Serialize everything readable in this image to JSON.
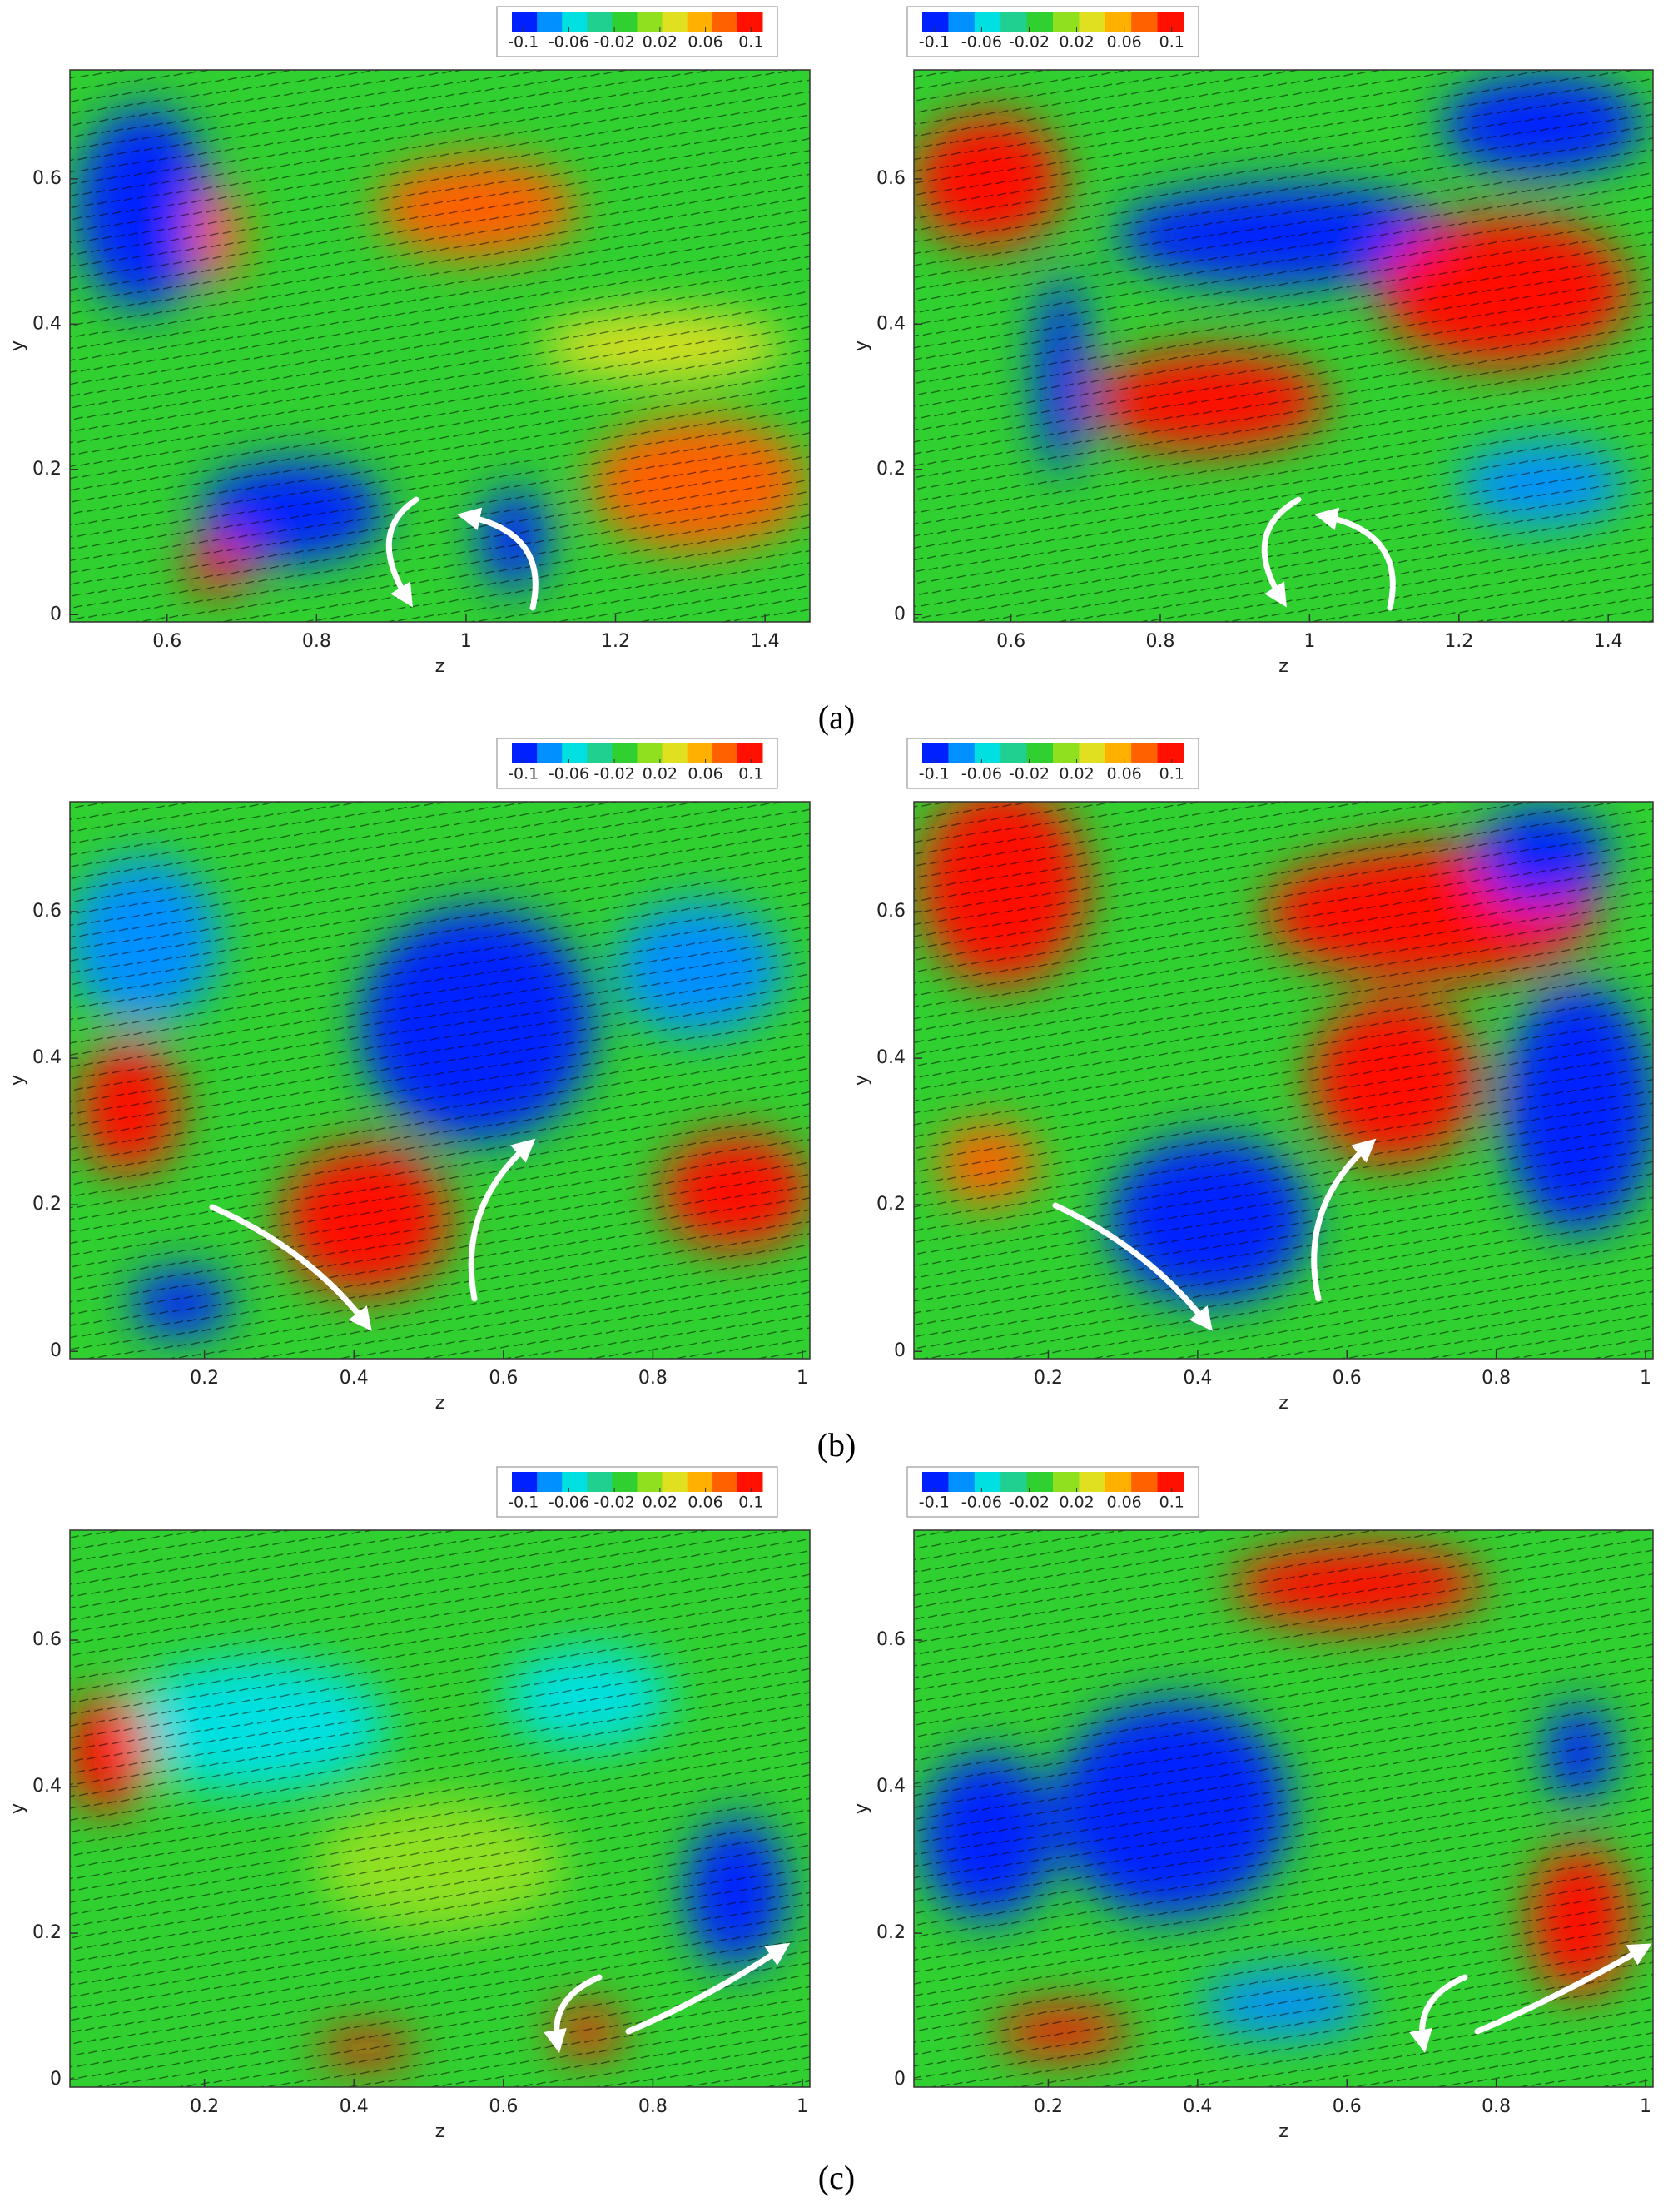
{
  "panel_labels": [
    "(a)",
    "(b)",
    "(c)"
  ],
  "chart_data": [
    {
      "type": "contour",
      "xlabel": "z",
      "ylabel": "y",
      "xlim": [
        0.47,
        1.46
      ],
      "ylim": [
        -0.01,
        0.75
      ],
      "xticks": [
        0.6,
        0.8,
        1,
        1.2,
        1.4
      ],
      "yticks": [
        0,
        0.2,
        0.4,
        0.6
      ],
      "clim": [
        -0.11,
        0.11
      ],
      "colorbar_ticks": [
        -0.1,
        -0.06,
        -0.02,
        0.02,
        0.06,
        0.1
      ],
      "colormap": [
        "#0020ff",
        "#0090ff",
        "#00e0e0",
        "#20d090",
        "#30d030",
        "#90e020",
        "#e0e020",
        "#ffb000",
        "#ff6000",
        "#ff1000"
      ]
    },
    {
      "type": "contour",
      "xlabel": "z",
      "ylabel": "y",
      "xlim": [
        0.47,
        1.46
      ],
      "ylim": [
        -0.01,
        0.75
      ],
      "xticks": [
        0.6,
        0.8,
        1,
        1.2,
        1.4
      ],
      "yticks": [
        0,
        0.2,
        0.4,
        0.6
      ],
      "clim": [
        -0.11,
        0.11
      ],
      "colorbar_ticks": [
        -0.1,
        -0.06,
        -0.02,
        0.02,
        0.06,
        0.1
      ],
      "colormap": [
        "#0020ff",
        "#0090ff",
        "#00e0e0",
        "#20d090",
        "#30d030",
        "#90e020",
        "#e0e020",
        "#ffb000",
        "#ff6000",
        "#ff1000"
      ]
    },
    {
      "type": "contour",
      "xlabel": "z",
      "ylabel": "y",
      "xlim": [
        0.02,
        1.01
      ],
      "ylim": [
        -0.01,
        0.75
      ],
      "xticks": [
        0.2,
        0.4,
        0.6,
        0.8,
        1
      ],
      "yticks": [
        0,
        0.2,
        0.4,
        0.6
      ],
      "clim": [
        -0.11,
        0.11
      ],
      "colorbar_ticks": [
        -0.1,
        -0.06,
        -0.02,
        0.02,
        0.06,
        0.1
      ],
      "colormap": [
        "#0020ff",
        "#0090ff",
        "#00e0e0",
        "#20d090",
        "#30d030",
        "#90e020",
        "#e0e020",
        "#ffb000",
        "#ff6000",
        "#ff1000"
      ]
    },
    {
      "type": "contour",
      "xlabel": "z",
      "ylabel": "y",
      "xlim": [
        0.02,
        1.01
      ],
      "ylim": [
        -0.01,
        0.75
      ],
      "xticks": [
        0.2,
        0.4,
        0.6,
        0.8,
        1
      ],
      "yticks": [
        0,
        0.2,
        0.4,
        0.6
      ],
      "clim": [
        -0.11,
        0.11
      ],
      "colorbar_ticks": [
        -0.1,
        -0.06,
        -0.02,
        0.02,
        0.06,
        0.1
      ],
      "colormap": [
        "#0020ff",
        "#0090ff",
        "#00e0e0",
        "#20d090",
        "#30d030",
        "#90e020",
        "#e0e020",
        "#ffb000",
        "#ff6000",
        "#ff1000"
      ]
    },
    {
      "type": "contour",
      "xlabel": "z",
      "ylabel": "y",
      "xlim": [
        0.02,
        1.01
      ],
      "ylim": [
        -0.01,
        0.75
      ],
      "xticks": [
        0.2,
        0.4,
        0.6,
        0.8,
        1
      ],
      "yticks": [
        0,
        0.2,
        0.4,
        0.6
      ],
      "clim": [
        -0.11,
        0.11
      ],
      "colorbar_ticks": [
        -0.1,
        -0.06,
        -0.02,
        0.02,
        0.06,
        0.1
      ],
      "colormap": [
        "#0020ff",
        "#0090ff",
        "#00e0e0",
        "#20d090",
        "#30d030",
        "#90e020",
        "#e0e020",
        "#ffb000",
        "#ff6000",
        "#ff1000"
      ]
    },
    {
      "type": "contour",
      "xlabel": "z",
      "ylabel": "y",
      "xlim": [
        0.02,
        1.01
      ],
      "ylim": [
        -0.01,
        0.75
      ],
      "xticks": [
        0.2,
        0.4,
        0.6,
        0.8,
        1
      ],
      "yticks": [
        0,
        0.2,
        0.4,
        0.6
      ],
      "clim": [
        -0.11,
        0.11
      ],
      "colorbar_ticks": [
        -0.1,
        -0.06,
        -0.02,
        0.02,
        0.06,
        0.1
      ],
      "colormap": [
        "#0020ff",
        "#0090ff",
        "#00e0e0",
        "#20d090",
        "#30d030",
        "#90e020",
        "#e0e020",
        "#ffb000",
        "#ff6000",
        "#ff1000"
      ]
    }
  ]
}
